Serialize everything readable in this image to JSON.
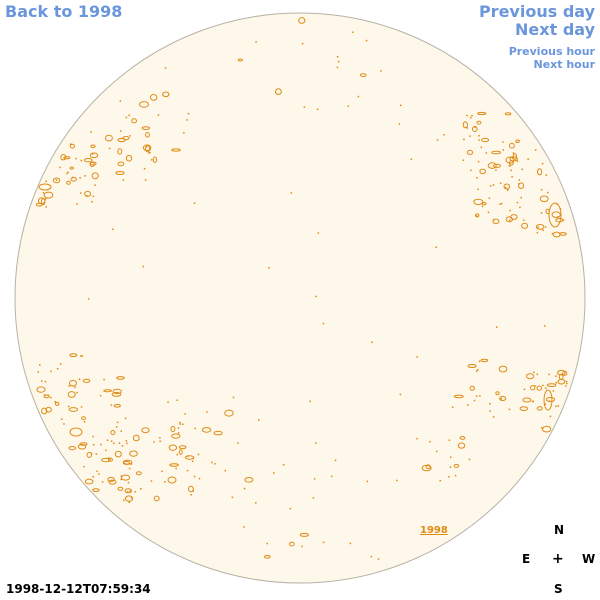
{
  "nav": {
    "back_label": "Back to 1998",
    "previous_day_label": "Previous day",
    "next_day_label": "Next day",
    "previous_hour_label": "Previous hour",
    "next_hour_label": "Next hour"
  },
  "image": {
    "year_label": "1998",
    "timestamp": "1998-12-12T07:59:34"
  },
  "compass": {
    "north": "N",
    "east": "E",
    "center": "+",
    "west": "W",
    "south": "S"
  },
  "colors": {
    "link": "#6b96dc",
    "disk_fill": "#fdf8ea",
    "disk_edge": "#b9b2a6",
    "contour": "#e08a14"
  }
}
